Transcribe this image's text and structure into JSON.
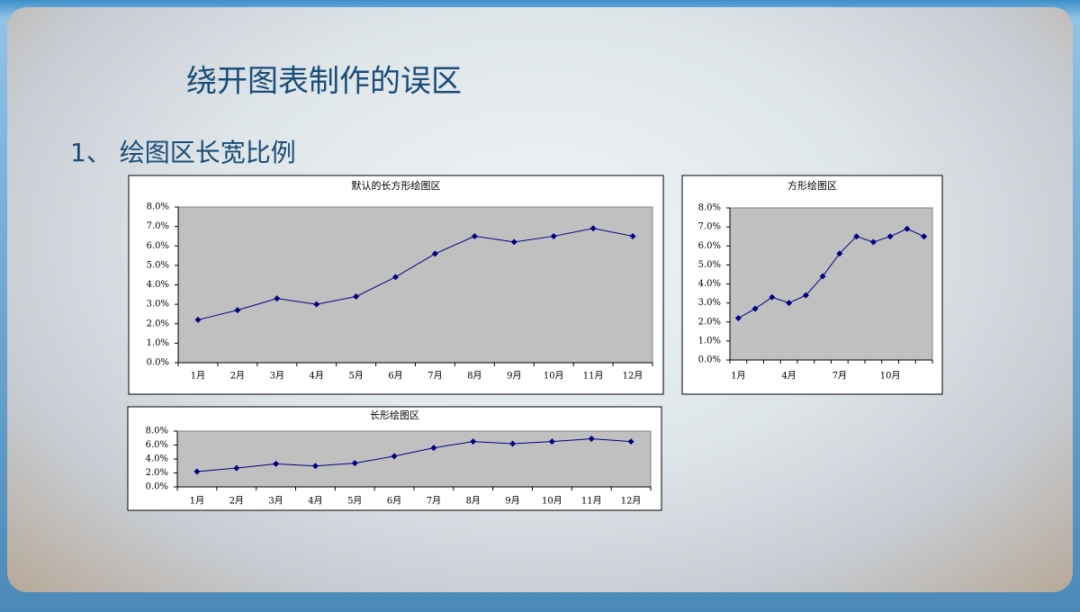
{
  "slide": {
    "title": "绕开图表制作的误区",
    "subtitle": "1、 绘图区长宽比例"
  },
  "chart_data": [
    {
      "type": "line",
      "title": "默认的长方形绘图区",
      "categories": [
        "1月",
        "2月",
        "3月",
        "4月",
        "5月",
        "6月",
        "7月",
        "8月",
        "9月",
        "10月",
        "11月",
        "12月"
      ],
      "values": [
        2.2,
        2.7,
        3.3,
        3.0,
        3.4,
        4.4,
        5.6,
        6.5,
        6.2,
        6.5,
        6.9,
        6.5
      ],
      "color": "#000080",
      "ylim": [
        0,
        8
      ],
      "yticks": [
        {
          "value": 0,
          "label": "0.0%"
        },
        {
          "value": 1,
          "label": "1.0%"
        },
        {
          "value": 2,
          "label": "2.0%"
        },
        {
          "value": 3,
          "label": "3.0%"
        },
        {
          "value": 4,
          "label": "4.0%"
        },
        {
          "value": 5,
          "label": "5.0%"
        },
        {
          "value": 6,
          "label": "6.0%"
        },
        {
          "value": 7,
          "label": "7.0%"
        },
        {
          "value": 8,
          "label": "8.0%"
        }
      ]
    },
    {
      "type": "line",
      "title": "方形绘图区",
      "categories": [
        "1月",
        null,
        null,
        "4月",
        null,
        null,
        "7月",
        null,
        null,
        "10月",
        null,
        null
      ],
      "values": [
        2.2,
        2.7,
        3.3,
        3.0,
        3.4,
        4.4,
        5.6,
        6.5,
        6.2,
        6.5,
        6.9,
        6.5
      ],
      "color": "#000080",
      "ylim": [
        0,
        8
      ],
      "yticks": [
        {
          "value": 0,
          "label": "0.0%"
        },
        {
          "value": 1,
          "label": "1.0%"
        },
        {
          "value": 2,
          "label": "2.0%"
        },
        {
          "value": 3,
          "label": "3.0%"
        },
        {
          "value": 4,
          "label": "4.0%"
        },
        {
          "value": 5,
          "label": "5.0%"
        },
        {
          "value": 6,
          "label": "6.0%"
        },
        {
          "value": 7,
          "label": "7.0%"
        },
        {
          "value": 8,
          "label": "8.0%"
        }
      ]
    },
    {
      "type": "line",
      "title": "长形绘图区",
      "categories": [
        "1月",
        "2月",
        "3月",
        "4月",
        "5月",
        "6月",
        "7月",
        "8月",
        "9月",
        "10月",
        "11月",
        "12月"
      ],
      "values": [
        2.2,
        2.7,
        3.3,
        3.0,
        3.4,
        4.4,
        5.6,
        6.5,
        6.2,
        6.5,
        6.9,
        6.5
      ],
      "color": "#000080",
      "ylim": [
        0,
        8
      ],
      "yticks": [
        {
          "value": 0,
          "label": "0.0%"
        },
        {
          "value": 2,
          "label": "2.0%"
        },
        {
          "value": 4,
          "label": "4.0%"
        },
        {
          "value": 6,
          "label": "6.0%"
        },
        {
          "value": 8,
          "label": "8.0%"
        }
      ]
    }
  ]
}
